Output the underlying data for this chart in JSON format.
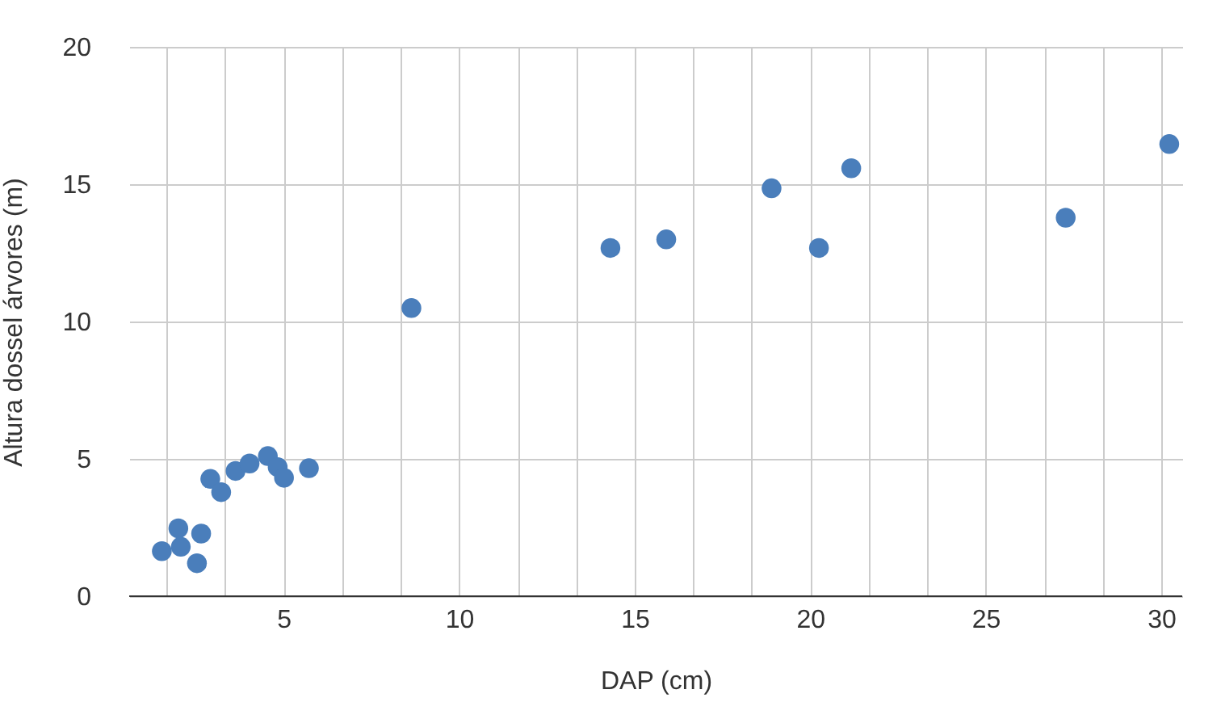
{
  "chart_data": {
    "type": "scatter",
    "xlabel": "DAP (cm)",
    "ylabel": "Altura dossel árvores (m)",
    "x": [
      1.53,
      2.0,
      2.07,
      2.65,
      2.53,
      2.91,
      3.22,
      3.63,
      4.03,
      4.55,
      4.83,
      5.01,
      5.72,
      8.64,
      14.31,
      15.9,
      18.9,
      20.25,
      21.17,
      27.28,
      30.23
    ],
    "series": [
      {
        "color": "#4a7ebb",
        "values": [
          1.64,
          2.47,
          1.8,
          2.28,
          1.2,
          4.27,
          3.79,
          4.56,
          4.83,
          5.1,
          4.7,
          4.31,
          4.66,
          10.49,
          12.68,
          12.99,
          14.85,
          12.68,
          15.58,
          13.78,
          16.46
        ]
      }
    ],
    "xlim": [
      0.6,
      30.6
    ],
    "xticks": [
      {
        "value": 1.67,
        "label": null
      },
      {
        "value": 3.33,
        "label": null
      },
      5,
      {
        "value": 6.67,
        "label": null
      },
      {
        "value": 8.33,
        "label": null
      },
      10,
      {
        "value": 11.67,
        "label": null
      },
      {
        "value": 13.33,
        "label": null
      },
      15,
      {
        "value": 16.67,
        "label": null
      },
      {
        "value": 18.33,
        "label": null
      },
      20,
      {
        "value": 21.67,
        "label": null
      },
      {
        "value": 23.33,
        "label": null
      },
      25,
      {
        "value": 26.67,
        "label": null
      },
      {
        "value": 28.33,
        "label": null
      },
      30
    ],
    "ylim": [
      0,
      20
    ],
    "yticks": [
      0,
      5,
      10,
      15,
      20
    ],
    "grid": true,
    "marker": "circle"
  }
}
